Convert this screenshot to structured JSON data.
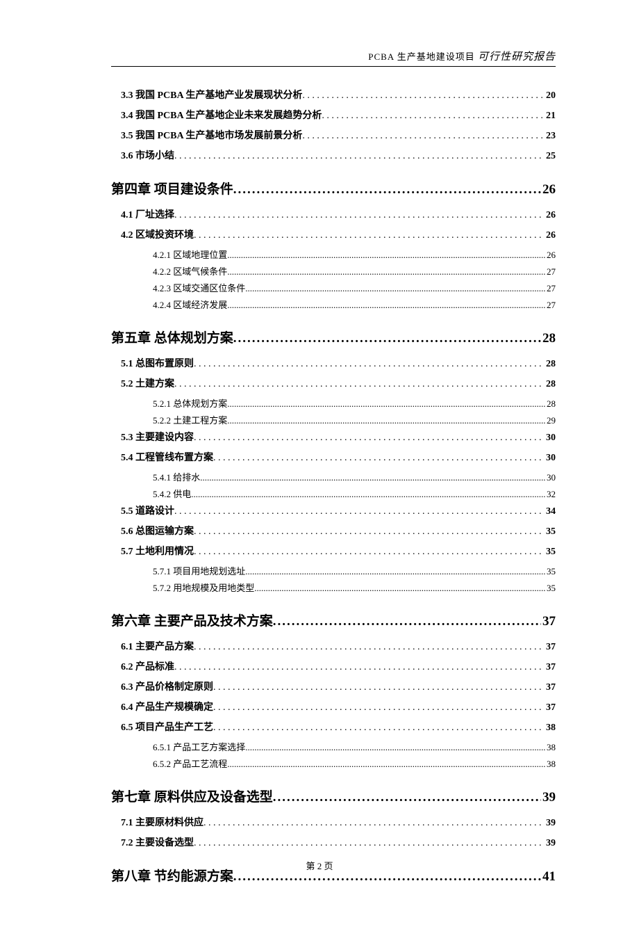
{
  "header": {
    "prefix": "PCBA 生产基地建设项目",
    "title": "可行性研究报告"
  },
  "footer": {
    "text": "第 2 页"
  },
  "toc": [
    {
      "lvl": "section",
      "label": "3.3 我国 PCBA 生产基地产业发展现状分析",
      "page": "20"
    },
    {
      "lvl": "section",
      "label": "3.4 我国 PCBA 生产基地企业未来发展趋势分析",
      "page": "21"
    },
    {
      "lvl": "section",
      "label": "3.5 我国 PCBA 生产基地市场发展前景分析",
      "page": "23"
    },
    {
      "lvl": "section",
      "label": "3.6 市场小结",
      "page": "25"
    },
    {
      "lvl": "chapter",
      "label": "第四章  项目建设条件",
      "page": "26"
    },
    {
      "lvl": "section",
      "label": "4.1 厂址选择",
      "page": "26"
    },
    {
      "lvl": "section",
      "label": "4.2 区域投资环境",
      "page": "26"
    },
    {
      "lvl": "sub",
      "label": "4.2.1 区域地理位置",
      "page": "26"
    },
    {
      "lvl": "sub",
      "label": "4.2.2 区域气候条件",
      "page": "27"
    },
    {
      "lvl": "sub",
      "label": "4.2.3 区域交通区位条件",
      "page": "27"
    },
    {
      "lvl": "sub",
      "label": "4.2.4 区域经济发展",
      "page": "27"
    },
    {
      "lvl": "chapter",
      "label": "第五章  总体规划方案",
      "page": "28"
    },
    {
      "lvl": "section",
      "label": "5.1 总图布置原则",
      "page": "28"
    },
    {
      "lvl": "section",
      "label": "5.2 土建方案",
      "page": "28"
    },
    {
      "lvl": "sub",
      "label": "5.2.1 总体规划方案",
      "page": "28"
    },
    {
      "lvl": "sub",
      "label": "5.2.2 土建工程方案",
      "page": "29"
    },
    {
      "lvl": "section",
      "label": "5.3 主要建设内容",
      "page": "30"
    },
    {
      "lvl": "section",
      "label": "5.4 工程管线布置方案",
      "page": "30"
    },
    {
      "lvl": "sub",
      "label": "5.4.1 给排水",
      "page": "30"
    },
    {
      "lvl": "sub",
      "label": "5.4.2 供电",
      "page": "32"
    },
    {
      "lvl": "section",
      "label": "5.5 道路设计",
      "page": "34"
    },
    {
      "lvl": "section",
      "label": "5.6 总图运输方案",
      "page": "35"
    },
    {
      "lvl": "section",
      "label": "5.7 土地利用情况",
      "page": "35"
    },
    {
      "lvl": "sub",
      "label": "5.7.1 项目用地规划选址",
      "page": "35"
    },
    {
      "lvl": "sub",
      "label": "5.7.2 用地规模及用地类型",
      "page": "35"
    },
    {
      "lvl": "chapter",
      "label": "第六章  主要产品及技术方案",
      "page": "37"
    },
    {
      "lvl": "section",
      "label": "6.1 主要产品方案",
      "page": "37"
    },
    {
      "lvl": "section",
      "label": "6.2 产品标准",
      "page": "37"
    },
    {
      "lvl": "section",
      "label": "6.3 产品价格制定原则",
      "page": "37"
    },
    {
      "lvl": "section",
      "label": "6.4 产品生产规模确定",
      "page": "37"
    },
    {
      "lvl": "section",
      "label": "6.5 项目产品生产工艺",
      "page": "38"
    },
    {
      "lvl": "sub",
      "label": "6.5.1 产品工艺方案选择",
      "page": "38"
    },
    {
      "lvl": "sub",
      "label": "6.5.2 产品工艺流程",
      "page": "38"
    },
    {
      "lvl": "chapter",
      "label": "第七章  原料供应及设备选型",
      "page": "39"
    },
    {
      "lvl": "section",
      "label": "7.1 主要原材料供应",
      "page": "39"
    },
    {
      "lvl": "section",
      "label": "7.2 主要设备选型",
      "page": "39"
    },
    {
      "lvl": "chapter",
      "label": "第八章  节约能源方案",
      "page": "41"
    }
  ]
}
